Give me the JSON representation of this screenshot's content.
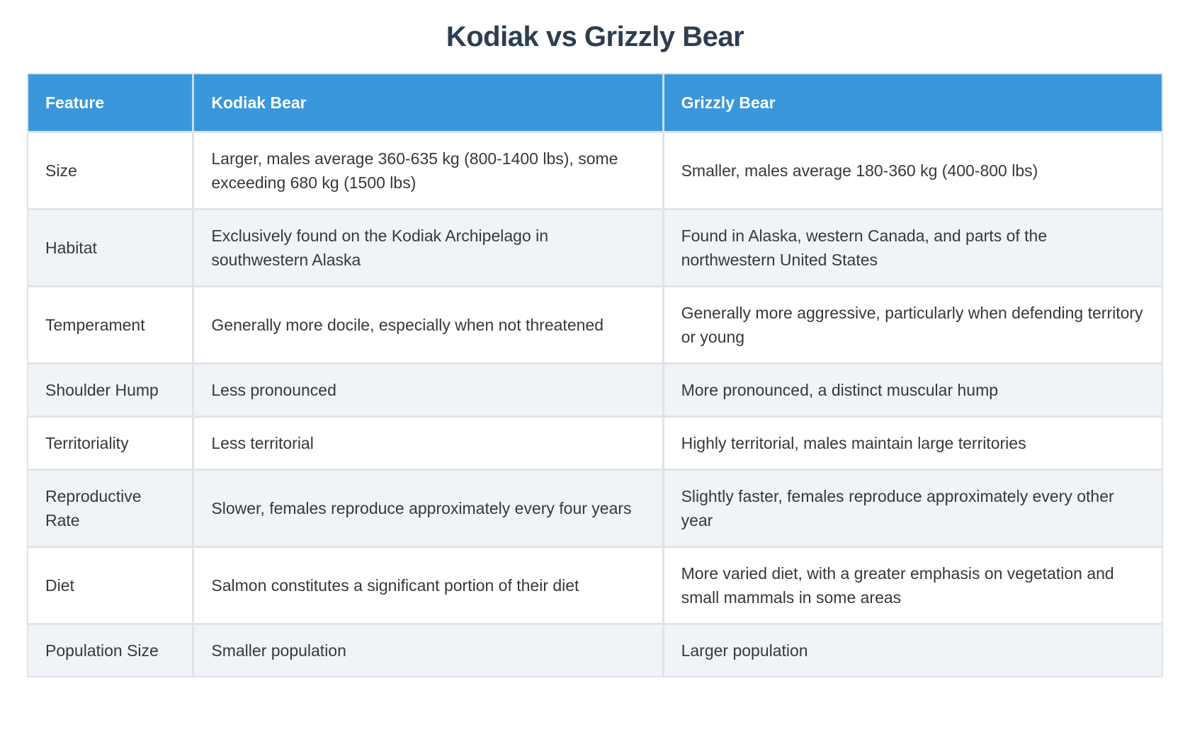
{
  "page": {
    "title": "Kodiak vs Grizzly Bear"
  },
  "table": {
    "columns": [
      {
        "label": "Feature"
      },
      {
        "label": "Kodiak Bear"
      },
      {
        "label": "Grizzly Bear"
      }
    ],
    "rows": [
      {
        "feature": "Size",
        "kodiak": "Larger, males average 360-635 kg (800-1400 lbs), some exceeding 680 kg (1500 lbs)",
        "grizzly": "Smaller, males average 180-360 kg (400-800 lbs)"
      },
      {
        "feature": "Habitat",
        "kodiak": "Exclusively found on the Kodiak Archipelago in southwestern Alaska",
        "grizzly": "Found in Alaska, western Canada, and parts of the northwestern United States"
      },
      {
        "feature": "Temperament",
        "kodiak": "Generally more docile, especially when not threatened",
        "grizzly": "Generally more aggressive, particularly when defending territory or young"
      },
      {
        "feature": "Shoulder Hump",
        "kodiak": "Less pronounced",
        "grizzly": "More pronounced, a distinct muscular hump"
      },
      {
        "feature": "Territoriality",
        "kodiak": "Less territorial",
        "grizzly": "Highly territorial, males maintain large territories"
      },
      {
        "feature": "Reproductive Rate",
        "kodiak": "Slower, females reproduce approximately every four years",
        "grizzly": "Slightly faster, females reproduce approximately every other year"
      },
      {
        "feature": "Diet",
        "kodiak": "Salmon constitutes a significant portion of their diet",
        "grizzly": "More varied diet, with a greater emphasis on vegetation and small mammals in some areas"
      },
      {
        "feature": "Population Size",
        "kodiak": "Smaller population",
        "grizzly": "Larger population"
      }
    ]
  },
  "colors": {
    "header_bg": "#3a97db",
    "header_text": "#ffffff",
    "title_text": "#2c3e50",
    "stripe_bg": "#f0f3f8",
    "body_text": "#35393c",
    "border": "#e0e3e7",
    "page_bg": "#ffffff"
  }
}
